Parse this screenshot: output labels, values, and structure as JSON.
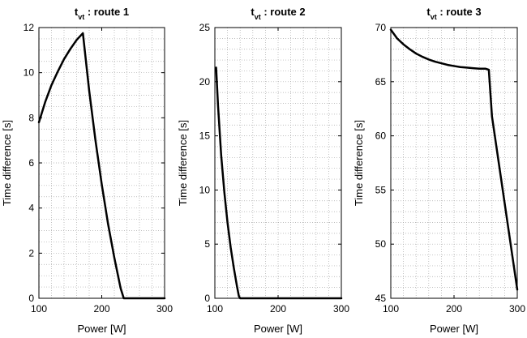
{
  "chart_data": [
    {
      "type": "line",
      "title": {
        "symbol": "t",
        "subscript": "vt",
        "rest": " : route 1"
      },
      "xlabel": "Power [W]",
      "ylabel": "Time difference [s]",
      "xlim": [
        100,
        300
      ],
      "ylim": [
        0,
        12
      ],
      "xticks": [
        100,
        200,
        300
      ],
      "yticks": [
        0,
        2,
        4,
        6,
        8,
        10,
        12
      ],
      "xminor": 20,
      "yminor": 0.5,
      "grid": true,
      "series": [
        {
          "x": [
            100,
            110,
            120,
            130,
            140,
            150,
            160,
            170,
            180,
            190,
            200,
            210,
            220,
            230,
            235,
            240,
            250,
            260,
            270,
            280,
            290,
            300
          ],
          "y": [
            7.8,
            8.7,
            9.45,
            10.05,
            10.6,
            11.05,
            11.45,
            11.75,
            9.2,
            7.0,
            5.05,
            3.3,
            1.8,
            0.45,
            0.0,
            0.0,
            0.0,
            0.0,
            0.0,
            0.0,
            0.0,
            0.0
          ]
        }
      ]
    },
    {
      "type": "line",
      "title": {
        "symbol": "t",
        "subscript": "vt",
        "rest": " : route 2"
      },
      "xlabel": "Power [W]",
      "ylabel": "Time difference [s]",
      "xlim": [
        100,
        300
      ],
      "ylim": [
        0,
        25
      ],
      "xticks": [
        100,
        200,
        300
      ],
      "yticks": [
        0,
        5,
        10,
        15,
        20,
        25
      ],
      "xminor": 20,
      "yminor": 1,
      "grid": true,
      "series": [
        {
          "x": [
            102,
            105,
            110,
            115,
            120,
            125,
            130,
            135,
            138,
            140,
            150,
            200,
            250,
            300
          ],
          "y": [
            21.3,
            17.8,
            13.2,
            9.8,
            7.0,
            4.7,
            2.8,
            1.1,
            0.2,
            0.0,
            0.0,
            0.0,
            0.0,
            0.0
          ]
        }
      ]
    },
    {
      "type": "line",
      "title": {
        "symbol": "t",
        "subscript": "vt",
        "rest": " : route 3"
      },
      "xlabel": "Power [W]",
      "ylabel": "Time difference [s]",
      "xlim": [
        100,
        300
      ],
      "ylim": [
        45,
        70
      ],
      "xticks": [
        100,
        200,
        300
      ],
      "yticks": [
        45,
        50,
        55,
        60,
        65,
        70
      ],
      "xminor": 20,
      "yminor": 1,
      "grid": true,
      "series": [
        {
          "x": [
            100,
            110,
            120,
            130,
            140,
            150,
            160,
            170,
            180,
            190,
            200,
            210,
            220,
            230,
            240,
            250,
            255,
            260,
            270,
            280,
            290,
            300
          ],
          "y": [
            69.8,
            69.0,
            68.45,
            68.0,
            67.6,
            67.3,
            67.05,
            66.85,
            66.7,
            66.55,
            66.45,
            66.35,
            66.3,
            66.25,
            66.2,
            66.2,
            66.1,
            61.8,
            57.8,
            53.8,
            49.8,
            45.8
          ]
        }
      ]
    }
  ]
}
